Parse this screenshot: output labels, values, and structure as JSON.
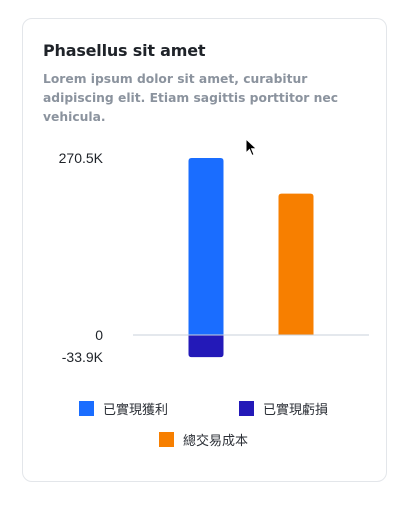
{
  "card": {
    "title": "Phasellus sit amet",
    "subtitle": "Lorem ipsum dolor sit amet, curabitur adipiscing elit. Etiam sagittis porttitor nec vehicula."
  },
  "colors": {
    "realized_profit": "#1a6dff",
    "realized_loss": "#2319b8",
    "total_cost": "#f77f00",
    "axis_line": "#c9d1db"
  },
  "chart_data": {
    "type": "bar",
    "title": "",
    "xlabel": "",
    "ylabel": "",
    "ylim": [
      -33.9,
      270.5
    ],
    "ytick_labels": [
      "270.5K",
      "0",
      "-33.9K"
    ],
    "y_ticks": [
      270.5,
      0,
      -33.9
    ],
    "unit": "K",
    "bars": [
      {
        "name": "已實現獲利",
        "value": 270.5,
        "color": "#1a6dff",
        "group": 0
      },
      {
        "name": "已實現虧損",
        "value": -33.9,
        "color": "#2319b8",
        "group": 0
      },
      {
        "name": "總交易成本",
        "value": 216.0,
        "color": "#f77f00",
        "group": 1
      }
    ],
    "legend": [
      {
        "label": "已實現獲利",
        "color": "#1a6dff"
      },
      {
        "label": "已實現虧損",
        "color": "#2319b8"
      },
      {
        "label": "總交易成本",
        "color": "#f77f00"
      }
    ],
    "legend_position": "bottom",
    "grid": false
  }
}
